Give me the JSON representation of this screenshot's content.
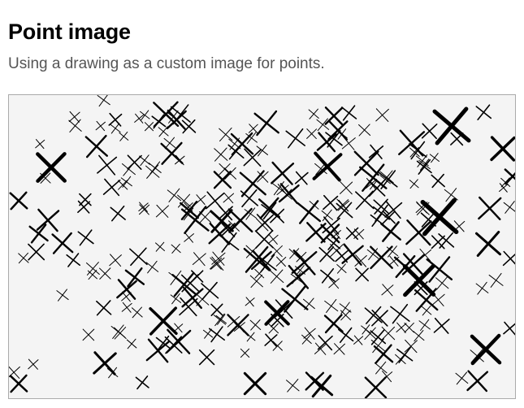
{
  "page": {
    "title": "Point image",
    "subtitle": "Using a drawing as a custom image for points."
  },
  "map": {
    "background_color": "#f4f4f4",
    "point_color": "#000000",
    "point_image": "hand-drawn-x-mark"
  }
}
